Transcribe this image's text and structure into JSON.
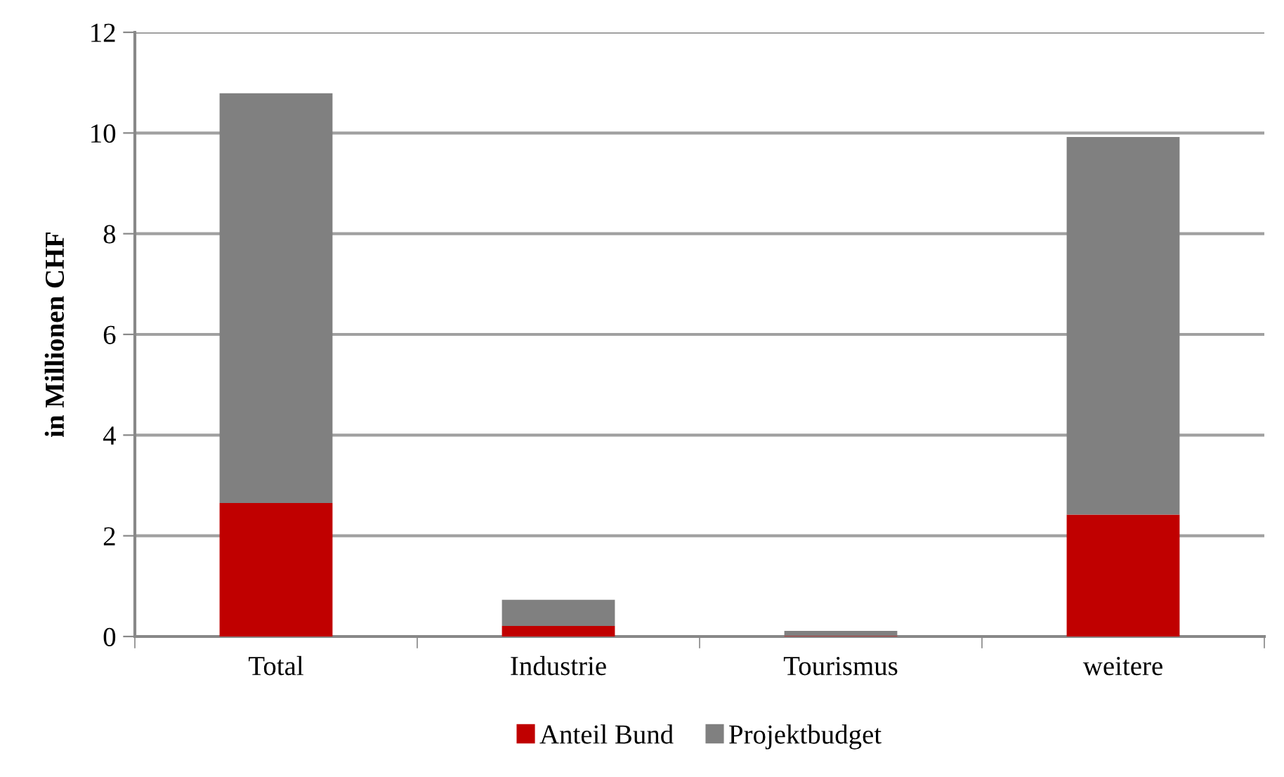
{
  "chart_data": {
    "type": "bar",
    "stacked": true,
    "ylabel": "in Millionen CHF",
    "categories": [
      "Total",
      "Industrie",
      "Tourismus",
      "weitere"
    ],
    "series": [
      {
        "name": "Anteil Bund",
        "color": "#c00000",
        "values": [
          2.65,
          0.21,
          0.01,
          2.42
        ]
      },
      {
        "name": "Projektbudget",
        "color": "#808080",
        "values": [
          8.14,
          0.52,
          0.1,
          7.5
        ]
      }
    ],
    "ylim": [
      0,
      12
    ],
    "yticks": [
      0,
      2,
      4,
      6,
      8,
      10,
      12
    ],
    "grid": "y",
    "legend": "bottom"
  }
}
